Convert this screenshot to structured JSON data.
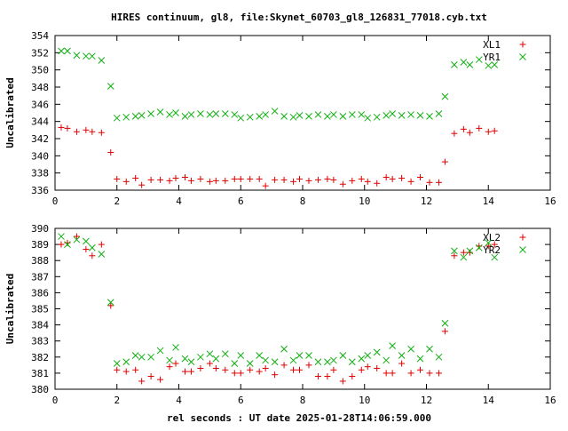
{
  "title": "HIRES continuum, gl8, file:Skynet_60703_gl8_126831_77018.cyb.txt",
  "xlabel": "rel seconds : UT date 2025-01-28T14:06:59.000",
  "colors": {
    "red": "#e00000",
    "green": "#10b010",
    "axis": "#000000"
  },
  "chart_data": [
    {
      "type": "scatter",
      "ylabel": "Uncalibrated",
      "xlim": [
        0,
        16
      ],
      "ylim": [
        336,
        354
      ],
      "xticks": [
        0,
        2,
        4,
        6,
        8,
        10,
        12,
        14,
        16
      ],
      "yticks": [
        336,
        338,
        340,
        342,
        344,
        346,
        348,
        350,
        352,
        354
      ],
      "legend_position": "top-right",
      "grid": false,
      "series": [
        {
          "name": "XL1",
          "marker": "plus",
          "color": "#e00000",
          "points": [
            [
              0.2,
              343.3
            ],
            [
              0.4,
              343.2
            ],
            [
              0.7,
              342.8
            ],
            [
              1.0,
              343.0
            ],
            [
              1.2,
              342.8
            ],
            [
              1.5,
              342.7
            ],
            [
              1.8,
              340.4
            ],
            [
              2.0,
              337.3
            ],
            [
              2.3,
              337.0
            ],
            [
              2.6,
              337.4
            ],
            [
              2.8,
              336.6
            ],
            [
              3.1,
              337.2
            ],
            [
              3.4,
              337.2
            ],
            [
              3.7,
              337.1
            ],
            [
              3.9,
              337.4
            ],
            [
              4.2,
              337.5
            ],
            [
              4.4,
              337.1
            ],
            [
              4.7,
              337.3
            ],
            [
              5.0,
              337.0
            ],
            [
              5.2,
              337.1
            ],
            [
              5.5,
              337.1
            ],
            [
              5.8,
              337.3
            ],
            [
              6.0,
              337.3
            ],
            [
              6.3,
              337.3
            ],
            [
              6.6,
              337.3
            ],
            [
              6.8,
              336.5
            ],
            [
              7.1,
              337.2
            ],
            [
              7.4,
              337.2
            ],
            [
              7.7,
              337.0
            ],
            [
              7.9,
              337.3
            ],
            [
              8.2,
              337.1
            ],
            [
              8.5,
              337.2
            ],
            [
              8.8,
              337.3
            ],
            [
              9.0,
              337.2
            ],
            [
              9.3,
              336.7
            ],
            [
              9.6,
              337.1
            ],
            [
              9.9,
              337.3
            ],
            [
              10.1,
              337.0
            ],
            [
              10.4,
              336.8
            ],
            [
              10.7,
              337.5
            ],
            [
              10.9,
              337.3
            ],
            [
              11.2,
              337.4
            ],
            [
              11.5,
              337.0
            ],
            [
              11.8,
              337.5
            ],
            [
              12.1,
              336.9
            ],
            [
              12.4,
              336.9
            ],
            [
              12.6,
              339.3
            ],
            [
              12.9,
              342.6
            ],
            [
              13.2,
              343.1
            ],
            [
              13.4,
              342.7
            ],
            [
              13.7,
              343.2
            ],
            [
              14.0,
              342.8
            ],
            [
              14.2,
              342.9
            ]
          ]
        },
        {
          "name": "YR1",
          "marker": "cross",
          "color": "#10b010",
          "points": [
            [
              0.2,
              352.2
            ],
            [
              0.4,
              352.2
            ],
            [
              0.7,
              351.7
            ],
            [
              1.0,
              351.6
            ],
            [
              1.2,
              351.6
            ],
            [
              1.5,
              351.1
            ],
            [
              1.8,
              348.1
            ],
            [
              2.0,
              344.4
            ],
            [
              2.3,
              344.5
            ],
            [
              2.6,
              344.6
            ],
            [
              2.8,
              344.7
            ],
            [
              3.1,
              344.9
            ],
            [
              3.4,
              345.1
            ],
            [
              3.7,
              344.8
            ],
            [
              3.9,
              345.0
            ],
            [
              4.2,
              344.6
            ],
            [
              4.4,
              344.8
            ],
            [
              4.7,
              344.9
            ],
            [
              5.0,
              344.8
            ],
            [
              5.2,
              344.9
            ],
            [
              5.5,
              344.9
            ],
            [
              5.8,
              344.8
            ],
            [
              6.0,
              344.4
            ],
            [
              6.3,
              344.5
            ],
            [
              6.6,
              344.6
            ],
            [
              6.8,
              344.8
            ],
            [
              7.1,
              345.2
            ],
            [
              7.4,
              344.6
            ],
            [
              7.7,
              344.5
            ],
            [
              7.9,
              344.7
            ],
            [
              8.2,
              344.6
            ],
            [
              8.5,
              344.8
            ],
            [
              8.8,
              344.6
            ],
            [
              9.0,
              344.8
            ],
            [
              9.3,
              344.6
            ],
            [
              9.6,
              344.8
            ],
            [
              9.9,
              344.8
            ],
            [
              10.1,
              344.4
            ],
            [
              10.4,
              344.5
            ],
            [
              10.7,
              344.7
            ],
            [
              10.9,
              344.9
            ],
            [
              11.2,
              344.7
            ],
            [
              11.5,
              344.8
            ],
            [
              11.8,
              344.7
            ],
            [
              12.1,
              344.6
            ],
            [
              12.4,
              344.9
            ],
            [
              12.6,
              346.9
            ],
            [
              12.9,
              350.6
            ],
            [
              13.2,
              350.9
            ],
            [
              13.4,
              350.6
            ],
            [
              13.7,
              351.2
            ],
            [
              14.0,
              350.5
            ],
            [
              14.2,
              350.6
            ]
          ]
        }
      ]
    },
    {
      "type": "scatter",
      "ylabel": "Uncalibrated",
      "xlim": [
        0,
        16
      ],
      "ylim": [
        380,
        390
      ],
      "xticks": [
        0,
        2,
        4,
        6,
        8,
        10,
        12,
        14,
        16
      ],
      "yticks": [
        380,
        381,
        382,
        383,
        384,
        385,
        386,
        387,
        388,
        389,
        390
      ],
      "legend_position": "top-right",
      "grid": false,
      "series": [
        {
          "name": "XL2",
          "marker": "plus",
          "color": "#e00000",
          "points": [
            [
              0.2,
              389.0
            ],
            [
              0.4,
              389.1
            ],
            [
              0.7,
              389.5
            ],
            [
              1.0,
              388.7
            ],
            [
              1.2,
              388.3
            ],
            [
              1.5,
              389.0
            ],
            [
              1.8,
              385.2
            ],
            [
              2.0,
              381.2
            ],
            [
              2.3,
              381.1
            ],
            [
              2.6,
              381.2
            ],
            [
              2.8,
              380.5
            ],
            [
              3.1,
              380.8
            ],
            [
              3.4,
              380.6
            ],
            [
              3.7,
              381.4
            ],
            [
              3.9,
              381.6
            ],
            [
              4.2,
              381.1
            ],
            [
              4.4,
              381.1
            ],
            [
              4.7,
              381.3
            ],
            [
              5.0,
              381.6
            ],
            [
              5.2,
              381.3
            ],
            [
              5.5,
              381.2
            ],
            [
              5.8,
              381.0
            ],
            [
              6.0,
              381.0
            ],
            [
              6.3,
              381.2
            ],
            [
              6.6,
              381.1
            ],
            [
              6.8,
              381.3
            ],
            [
              7.1,
              380.9
            ],
            [
              7.4,
              381.5
            ],
            [
              7.7,
              381.2
            ],
            [
              7.9,
              381.2
            ],
            [
              8.2,
              381.5
            ],
            [
              8.5,
              380.8
            ],
            [
              8.8,
              380.8
            ],
            [
              9.0,
              381.2
            ],
            [
              9.3,
              380.5
            ],
            [
              9.6,
              380.8
            ],
            [
              9.9,
              381.2
            ],
            [
              10.1,
              381.4
            ],
            [
              10.4,
              381.3
            ],
            [
              10.7,
              381.0
            ],
            [
              10.9,
              381.0
            ],
            [
              11.2,
              381.6
            ],
            [
              11.5,
              381.0
            ],
            [
              11.8,
              381.2
            ],
            [
              12.1,
              381.0
            ],
            [
              12.4,
              381.0
            ],
            [
              12.6,
              383.6
            ],
            [
              12.9,
              388.3
            ],
            [
              13.2,
              388.5
            ],
            [
              13.4,
              388.5
            ],
            [
              13.7,
              388.9
            ],
            [
              14.0,
              388.9
            ],
            [
              14.2,
              389.0
            ]
          ]
        },
        {
          "name": "YR2",
          "marker": "cross",
          "color": "#10b010",
          "points": [
            [
              0.2,
              389.5
            ],
            [
              0.4,
              389.0
            ],
            [
              0.7,
              389.3
            ],
            [
              1.0,
              389.2
            ],
            [
              1.2,
              388.8
            ],
            [
              1.5,
              388.4
            ],
            [
              1.8,
              385.4
            ],
            [
              2.0,
              381.6
            ],
            [
              2.3,
              381.7
            ],
            [
              2.6,
              382.1
            ],
            [
              2.8,
              382.0
            ],
            [
              3.1,
              382.0
            ],
            [
              3.4,
              382.4
            ],
            [
              3.7,
              381.8
            ],
            [
              3.9,
              382.6
            ],
            [
              4.2,
              381.9
            ],
            [
              4.4,
              381.7
            ],
            [
              4.7,
              382.0
            ],
            [
              5.0,
              382.2
            ],
            [
              5.2,
              381.9
            ],
            [
              5.5,
              382.2
            ],
            [
              5.8,
              381.6
            ],
            [
              6.0,
              382.1
            ],
            [
              6.3,
              381.6
            ],
            [
              6.6,
              382.1
            ],
            [
              6.8,
              381.8
            ],
            [
              7.1,
              381.7
            ],
            [
              7.4,
              382.5
            ],
            [
              7.7,
              381.8
            ],
            [
              7.9,
              382.1
            ],
            [
              8.2,
              382.1
            ],
            [
              8.5,
              381.7
            ],
            [
              8.8,
              381.7
            ],
            [
              9.0,
              381.8
            ],
            [
              9.3,
              382.1
            ],
            [
              9.6,
              381.7
            ],
            [
              9.9,
              381.9
            ],
            [
              10.1,
              382.1
            ],
            [
              10.4,
              382.3
            ],
            [
              10.7,
              381.8
            ],
            [
              10.9,
              382.7
            ],
            [
              11.2,
              382.1
            ],
            [
              11.5,
              382.5
            ],
            [
              11.8,
              381.9
            ],
            [
              12.1,
              382.5
            ],
            [
              12.4,
              382.0
            ],
            [
              12.6,
              384.1
            ],
            [
              12.9,
              388.6
            ],
            [
              13.2,
              388.2
            ],
            [
              13.4,
              388.6
            ],
            [
              13.7,
              388.8
            ],
            [
              14.0,
              389.1
            ],
            [
              14.2,
              388.2
            ]
          ]
        }
      ]
    }
  ]
}
